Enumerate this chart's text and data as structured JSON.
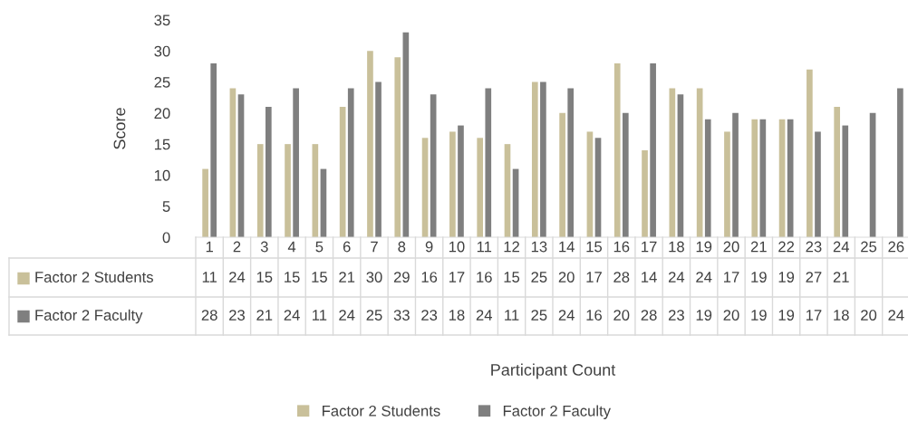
{
  "chart_data": {
    "type": "bar",
    "annotations": [
      "Participant Count"
    ],
    "ylabel": "Score",
    "categories": [
      "1",
      "2",
      "3",
      "4",
      "5",
      "6",
      "7",
      "8",
      "9",
      "10",
      "11",
      "12",
      "13",
      "14",
      "15",
      "16",
      "17",
      "18",
      "19",
      "20",
      "21",
      "22",
      "23",
      "24",
      "25",
      "26"
    ],
    "series": [
      {
        "name": "Factor 2 Students",
        "color": "#c9c09a",
        "values": [
          11,
          24,
          15,
          15,
          15,
          21,
          30,
          29,
          16,
          17,
          16,
          15,
          25,
          20,
          17,
          28,
          14,
          24,
          24,
          17,
          19,
          19,
          27,
          21,
          null,
          null
        ]
      },
      {
        "name": "Factor 2 Faculty",
        "color": "#7f7f7f",
        "values": [
          28,
          23,
          21,
          24,
          11,
          24,
          25,
          33,
          23,
          18,
          24,
          11,
          25,
          24,
          16,
          20,
          28,
          23,
          19,
          20,
          19,
          19,
          17,
          18,
          20,
          24
        ]
      }
    ],
    "ylim": [
      0,
      35
    ],
    "yticks": [
      0,
      5,
      10,
      15,
      20,
      25,
      30,
      35
    ],
    "grid": false,
    "legend": "bottom",
    "data_labels": true
  }
}
